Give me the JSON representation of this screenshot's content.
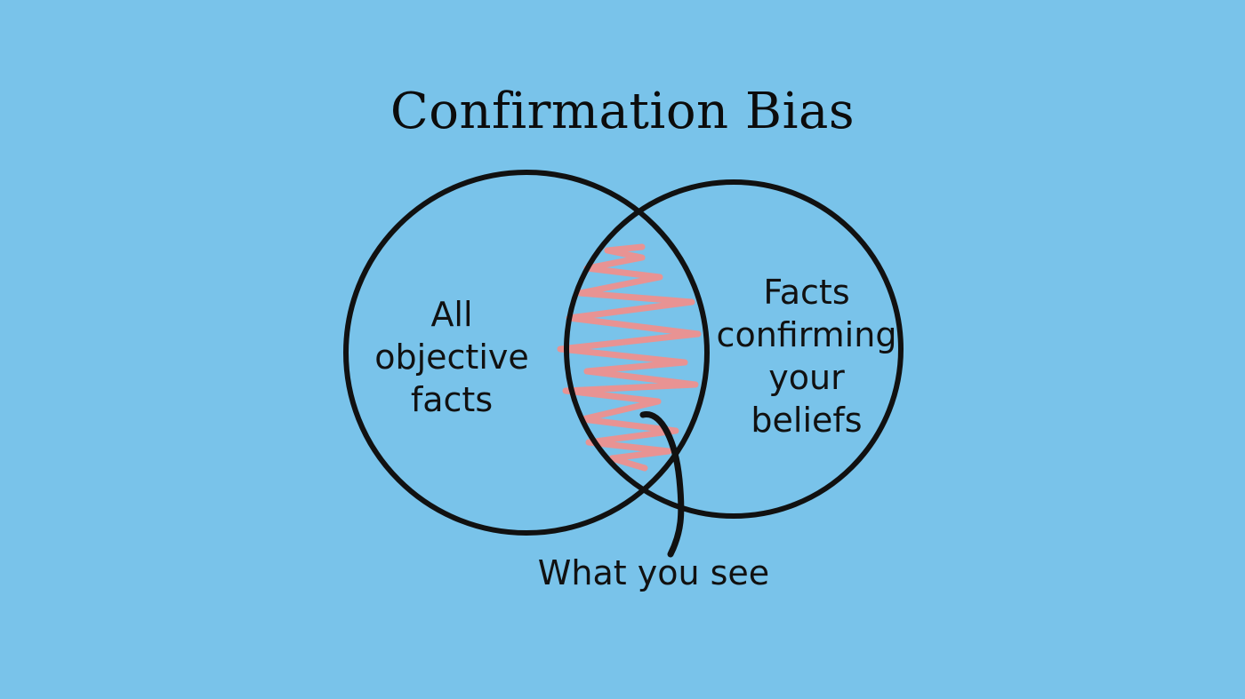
{
  "diagram": {
    "title": "Confirmation Bias",
    "left_set_label": [
      "All",
      "objective",
      "facts"
    ],
    "right_set_label": [
      "Facts",
      "confirming",
      "your",
      "beliefs"
    ],
    "intersection_label": "What you see"
  },
  "colors": {
    "background": "#79c3ea",
    "circle_stroke": "#111111",
    "scribble": "#e89393",
    "text": "#111111"
  }
}
